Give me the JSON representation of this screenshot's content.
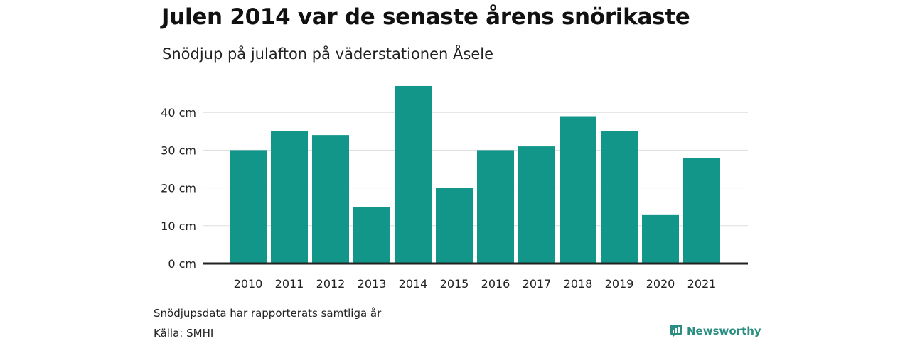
{
  "title": "Julen 2014 var de senaste årens snörikaste",
  "subtitle": "Snödjup på julafton på väderstationen Åsele",
  "note": "Snödjupsdata har rapporterats samtliga år",
  "source": "Källa: SMHI",
  "brand": {
    "name": "Newsworthy",
    "icon": "newsworthy-logo-icon",
    "color": "#2a8f82"
  },
  "chart_data": {
    "type": "bar",
    "title": "Julen 2014 var de senaste årens snörikaste",
    "subtitle": "Snödjup på julafton på väderstationen Åsele",
    "categories": [
      "2010",
      "2011",
      "2012",
      "2013",
      "2014",
      "2015",
      "2016",
      "2017",
      "2018",
      "2019",
      "2020",
      "2021"
    ],
    "values": [
      30,
      35,
      34,
      15,
      47,
      20,
      30,
      31,
      39,
      35,
      13,
      28
    ],
    "unit": "cm",
    "yticks": [
      "0 cm",
      "10 cm",
      "20 cm",
      "30 cm",
      "40 cm"
    ],
    "ylim": [
      0,
      50
    ],
    "xlabel": "",
    "ylabel": "",
    "grid": true,
    "bar_color": "#13968a",
    "baseline_color": "#222222",
    "grid_color": "#dddddd"
  }
}
